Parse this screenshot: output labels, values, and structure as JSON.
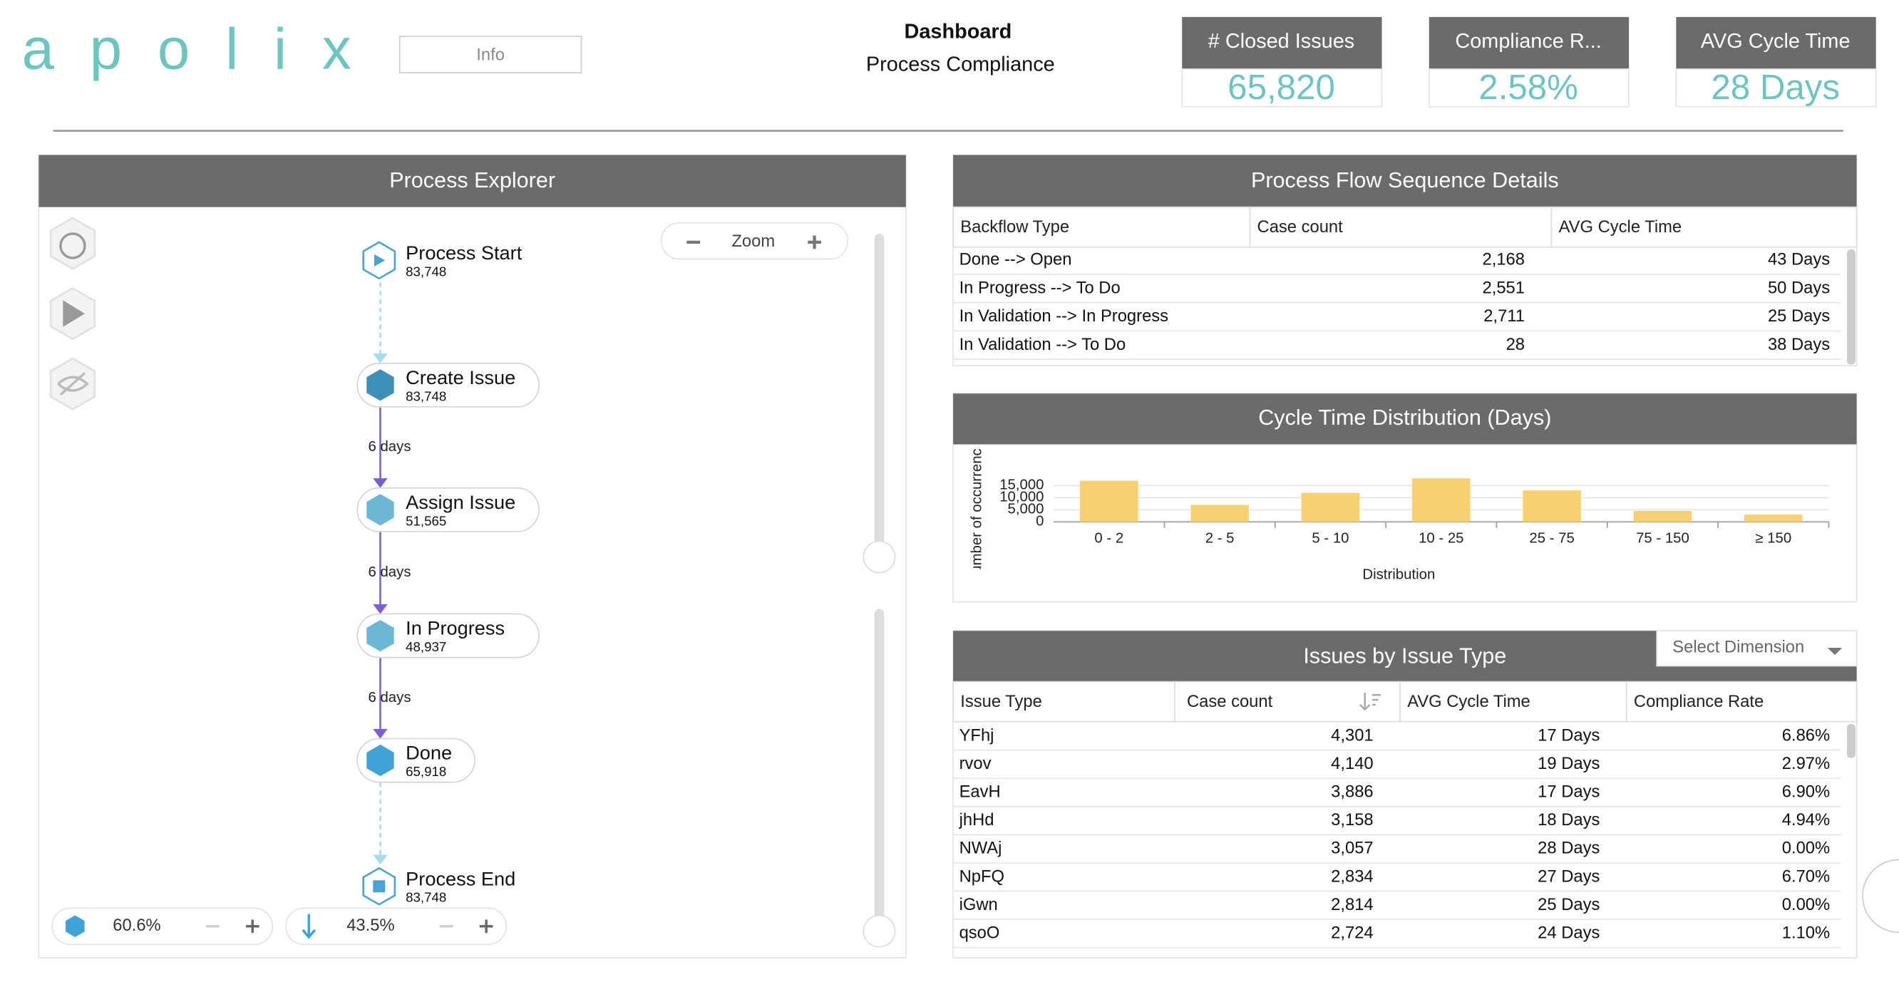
{
  "header": {
    "logo": "apolix",
    "info_button": "Info",
    "title": "Dashboard",
    "subtitle": "Process Compliance"
  },
  "kpis": [
    {
      "label": "# Closed Issues",
      "value": "65,820"
    },
    {
      "label": "Compliance R...",
      "value": "2.58%"
    },
    {
      "label": "AVG Cycle Time",
      "value": "28 Days"
    }
  ],
  "process_explorer": {
    "title": "Process Explorer",
    "zoom_label": "Zoom",
    "nodes": [
      {
        "label": "Process Start",
        "count": "83,748"
      },
      {
        "label": "Create Issue",
        "count": "83,748"
      },
      {
        "label": "Assign Issue",
        "count": "51,565"
      },
      {
        "label": "In Progress",
        "count": "48,937"
      },
      {
        "label": "Done",
        "count": "65,918"
      },
      {
        "label": "Process End",
        "count": "83,748"
      }
    ],
    "edges": [
      null,
      "6 days",
      "6 days",
      "6 days",
      null
    ],
    "activity_percent": "60.6%",
    "path_percent": "43.5%"
  },
  "backflow_table": {
    "title": "Process Flow Sequence Details",
    "columns": [
      "Backflow Type",
      "Case count",
      "AVG Cycle Time"
    ],
    "rows": [
      [
        "Done --> Open",
        "2,168",
        "43 Days"
      ],
      [
        "In Progress --> To Do",
        "2,551",
        "50 Days"
      ],
      [
        "In Validation --> In Progress",
        "2,711",
        "25 Days"
      ],
      [
        "In Validation --> To Do",
        "28",
        "38 Days"
      ]
    ]
  },
  "chart_data": {
    "type": "bar",
    "title": "Cycle Time Distribution (Days)",
    "x_label": "Distribution",
    "y_label": "Number of occurrences",
    "categories": [
      "0 - 2",
      "2 - 5",
      "5 - 10",
      "10 - 25",
      "25 - 75",
      "75 - 150",
      "≥ 150"
    ],
    "values": [
      17000,
      7000,
      12000,
      18000,
      13000,
      4500,
      3000
    ],
    "color": "#f7d16f",
    "ylim": [
      0,
      20000
    ],
    "yticks": [
      0,
      {
        "value": 5000,
        "label": "5,000"
      },
      {
        "value": 10000,
        "label": "10,000"
      },
      {
        "value": 15000,
        "label": "15,000"
      }
    ],
    "grid": true
  },
  "issues_table": {
    "title": "Issues by Issue Type",
    "dimension_select": "Select Dimension",
    "columns": [
      "Issue Type",
      "Case count",
      "AVG Cycle Time",
      "Compliance Rate"
    ],
    "rows": [
      [
        "YFhj",
        "4,301",
        "17 Days",
        "6.86%"
      ],
      [
        "rvov",
        "4,140",
        "19 Days",
        "2.97%"
      ],
      [
        "EavH",
        "3,886",
        "17 Days",
        "6.90%"
      ],
      [
        "jhHd",
        "3,158",
        "18 Days",
        "4.94%"
      ],
      [
        "NWAj",
        "3,057",
        "28 Days",
        "0.00%"
      ],
      [
        "NpFQ",
        "2,834",
        "27 Days",
        "6.70%"
      ],
      [
        "iGwn",
        "2,814",
        "25 Days",
        "0.00%"
      ],
      [
        "qsoO",
        "2,724",
        "24 Days",
        "1.10%"
      ]
    ]
  }
}
